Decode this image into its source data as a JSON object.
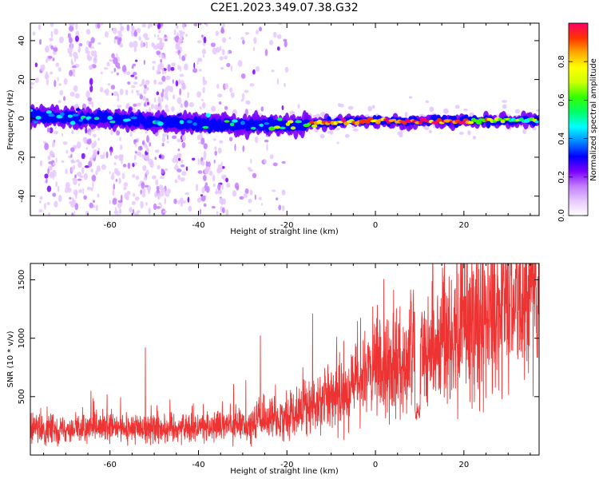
{
  "figure_title": "C2E1.2023.349.07.38.G32",
  "colors": {
    "snr_line": "#ee3333",
    "background": "#ffffff",
    "colormap": [
      "#ffffff",
      "#e6c8ff",
      "#c27cff",
      "#7a00ff",
      "#0000ff",
      "#0088ff",
      "#00ffff",
      "#00ff66",
      "#33ff00",
      "#ccff00",
      "#ffff00",
      "#ffaa00",
      "#ff3300",
      "#ff0066"
    ]
  },
  "chart_data": [
    {
      "type": "heatmap",
      "name": "spectrogram",
      "title": "C2E1.2023.349.07.38.G32",
      "xlabel": "Height of straight line (km)",
      "ylabel": "Frequency (Hz)",
      "xlim": [
        -78,
        37
      ],
      "ylim": [
        -50,
        49
      ],
      "x_ticks": [
        -60,
        -40,
        -20,
        0,
        20
      ],
      "x_tick_labels": [
        "-60",
        "-40",
        "-20",
        "0",
        "20"
      ],
      "y_ticks": [
        -40,
        -20,
        0,
        20,
        40
      ],
      "y_tick_labels": [
        "-40",
        "-20",
        "0",
        "20",
        "40"
      ],
      "ridge": {
        "description_points_x": [
          -78,
          -60,
          -40,
          -20,
          -10,
          0,
          10,
          20,
          37
        ],
        "description_points_freq": [
          1,
          0,
          -3,
          -4,
          -2,
          -1,
          -1.5,
          -1.5,
          -1
        ],
        "amplitude_trend": [
          0.35,
          0.35,
          0.4,
          0.55,
          0.85,
          0.85,
          0.95,
          0.8,
          0.5
        ]
      },
      "colorbar": {
        "label": "Normalized spectral amplitude",
        "range": [
          0,
          1
        ],
        "ticks": [
          0.0,
          0.2,
          0.4,
          0.6,
          0.8
        ],
        "tick_labels": [
          "0.0",
          "0.2",
          "0.4",
          "0.6",
          "0.8"
        ]
      }
    },
    {
      "type": "line",
      "name": "snr",
      "xlabel": "Height of straight line (km)",
      "ylabel": "SNR (10 * v/v)",
      "xlim": [
        -78,
        37
      ],
      "ylim": [
        0,
        1640
      ],
      "x_ticks": [
        -60,
        -40,
        -20,
        0,
        20
      ],
      "x_tick_labels": [
        "-60",
        "-40",
        "-20",
        "0",
        "20"
      ],
      "y_ticks": [
        500,
        1000,
        1500
      ],
      "y_tick_labels": [
        "500",
        "1000",
        "1500"
      ],
      "series": [
        {
          "name": "SNR",
          "trend_x": [
            -78,
            -50,
            -30,
            -20,
            -10,
            0,
            10,
            20,
            30,
            37
          ],
          "trend_y": [
            220,
            230,
            250,
            330,
            500,
            700,
            900,
            1050,
            1250,
            1330
          ],
          "notable_spikes": [
            {
              "x": -52,
              "y": 920
            },
            {
              "x": -26,
              "y": 1020
            },
            {
              "x": 11,
              "y": 1170
            },
            {
              "x": 29,
              "y": 1620
            },
            {
              "x": 35,
              "y": 1590
            }
          ],
          "dip": {
            "x": 9.5,
            "y": 300
          }
        }
      ]
    }
  ]
}
